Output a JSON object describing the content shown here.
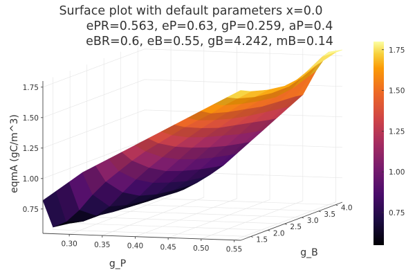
{
  "chart_data": {
    "type": "surface",
    "title_lines": [
      "Surface plot with default parameters x=0.0",
      "ePR=0.563, eP=0.63, gP=0.259, aP=0.4",
      "eBR=0.6, eB=0.55, gB=4.242, mB=0.14"
    ],
    "xlabel": "g_P",
    "ylabel": "g_B",
    "zlabel": "eqmA (gC/m^3)",
    "xlim": [
      0.26,
      0.56
    ],
    "ylim": [
      1.2,
      4.2
    ],
    "zlim": [
      0.55,
      1.8
    ],
    "x_ticks": [
      0.3,
      0.35,
      0.4,
      0.45,
      0.5,
      0.55
    ],
    "x_tick_labels": [
      "0.30",
      "0.35",
      "0.40",
      "0.45",
      "0.50",
      "0.55"
    ],
    "y_ticks": [
      1.5,
      2.0,
      2.5,
      3.0,
      3.5,
      4.0
    ],
    "y_tick_labels": [
      "1.5",
      "2.0",
      "2.5",
      "3.0",
      "3.5",
      "4.0"
    ],
    "z_ticks": [
      0.75,
      1.0,
      1.25,
      1.5,
      1.75
    ],
    "z_tick_labels": [
      "0.75",
      "1.00",
      "1.25",
      "1.50",
      "1.75"
    ],
    "colorbar": {
      "range": [
        0.55,
        1.8
      ],
      "ticks": [
        0.75,
        1.0,
        1.25,
        1.5,
        1.75
      ],
      "tick_labels": [
        "0.75",
        "1.00",
        "1.25",
        "1.50",
        "1.75"
      ]
    },
    "colormap": "inferno",
    "grid": true,
    "surface_rows": [
      {
        "g_P": 0.26,
        "g_B": [
          1.2,
          1.5,
          2.0,
          2.5,
          3.0,
          3.5,
          4.0,
          4.2
        ],
        "eqmA": [
          0.82,
          0.57,
          0.55,
          0.55,
          0.55,
          0.55,
          0.55,
          0.55
        ]
      },
      {
        "g_P": 0.28,
        "g_B": [
          1.2,
          1.5,
          2.0,
          2.5,
          3.0,
          3.5,
          4.0,
          4.2
        ],
        "eqmA": [
          0.9,
          0.62,
          0.57,
          0.57,
          0.56,
          0.56,
          0.56,
          0.56
        ]
      },
      {
        "g_P": 0.3,
        "g_B": [
          1.2,
          1.5,
          2.0,
          2.5,
          3.0,
          3.5,
          4.0,
          4.2
        ],
        "eqmA": [
          0.98,
          0.72,
          0.62,
          0.6,
          0.59,
          0.58,
          0.58,
          0.58
        ]
      },
      {
        "g_P": 0.32,
        "g_B": [
          1.2,
          1.5,
          2.0,
          2.5,
          3.0,
          3.5,
          4.0,
          4.2
        ],
        "eqmA": [
          1.06,
          0.85,
          0.7,
          0.66,
          0.64,
          0.62,
          0.61,
          0.61
        ]
      },
      {
        "g_P": 0.34,
        "g_B": [
          1.2,
          1.5,
          2.0,
          2.5,
          3.0,
          3.5,
          4.0,
          4.2
        ],
        "eqmA": [
          1.12,
          0.96,
          0.82,
          0.74,
          0.7,
          0.68,
          0.67,
          0.67
        ]
      },
      {
        "g_P": 0.36,
        "g_B": [
          1.2,
          1.5,
          2.0,
          2.5,
          3.0,
          3.5,
          4.0,
          4.2
        ],
        "eqmA": [
          1.18,
          1.05,
          0.93,
          0.85,
          0.8,
          0.76,
          0.74,
          0.74
        ]
      },
      {
        "g_P": 0.38,
        "g_B": [
          1.2,
          1.5,
          2.0,
          2.5,
          3.0,
          3.5,
          4.0,
          4.2
        ],
        "eqmA": [
          1.24,
          1.14,
          1.03,
          0.95,
          0.9,
          0.86,
          0.83,
          0.82
        ]
      },
      {
        "g_P": 0.4,
        "g_B": [
          1.2,
          1.5,
          2.0,
          2.5,
          3.0,
          3.5,
          4.0,
          4.2
        ],
        "eqmA": [
          1.3,
          1.22,
          1.12,
          1.05,
          1.0,
          0.96,
          0.93,
          0.92
        ]
      },
      {
        "g_P": 0.42,
        "g_B": [
          1.2,
          1.5,
          2.0,
          2.5,
          3.0,
          3.5,
          4.0,
          4.2
        ],
        "eqmA": [
          1.36,
          1.29,
          1.21,
          1.15,
          1.1,
          1.06,
          1.03,
          1.02
        ]
      },
      {
        "g_P": 0.44,
        "g_B": [
          1.2,
          1.5,
          2.0,
          2.5,
          3.0,
          3.5,
          4.0,
          4.2
        ],
        "eqmA": [
          1.42,
          1.36,
          1.29,
          1.24,
          1.2,
          1.16,
          1.13,
          1.12
        ]
      },
      {
        "g_P": 0.46,
        "g_B": [
          1.2,
          1.5,
          2.0,
          2.5,
          3.0,
          3.5,
          4.0,
          4.2
        ],
        "eqmA": [
          1.48,
          1.43,
          1.37,
          1.32,
          1.29,
          1.26,
          1.23,
          1.22
        ]
      },
      {
        "g_P": 0.48,
        "g_B": [
          1.2,
          1.5,
          2.0,
          2.5,
          3.0,
          3.5,
          4.0,
          4.2
        ],
        "eqmA": [
          1.54,
          1.49,
          1.44,
          1.4,
          1.37,
          1.35,
          1.33,
          1.32
        ]
      },
      {
        "g_P": 0.5,
        "g_B": [
          1.2,
          1.5,
          2.0,
          2.5,
          3.0,
          3.5,
          4.0,
          4.2
        ],
        "eqmA": [
          1.6,
          1.55,
          1.51,
          1.48,
          1.45,
          1.44,
          1.43,
          1.42
        ]
      },
      {
        "g_P": 0.52,
        "g_B": [
          1.2,
          1.5,
          2.0,
          2.5,
          3.0,
          3.5,
          4.0,
          4.2
        ],
        "eqmA": [
          1.66,
          1.62,
          1.58,
          1.55,
          1.53,
          1.55,
          1.6,
          1.62
        ]
      },
      {
        "g_P": 0.54,
        "g_B": [
          1.2,
          1.5,
          2.0,
          2.5,
          3.0,
          3.5,
          4.0,
          4.2
        ],
        "eqmA": [
          1.72,
          1.68,
          1.64,
          1.62,
          1.62,
          1.68,
          1.76,
          1.78
        ]
      },
      {
        "g_P": 0.56,
        "g_B": [
          1.2,
          1.5,
          2.0,
          2.5,
          3.0,
          3.5,
          4.0,
          4.2
        ],
        "eqmA": [
          1.78,
          1.74,
          1.7,
          1.68,
          1.7,
          1.76,
          1.8,
          1.8
        ]
      }
    ]
  }
}
